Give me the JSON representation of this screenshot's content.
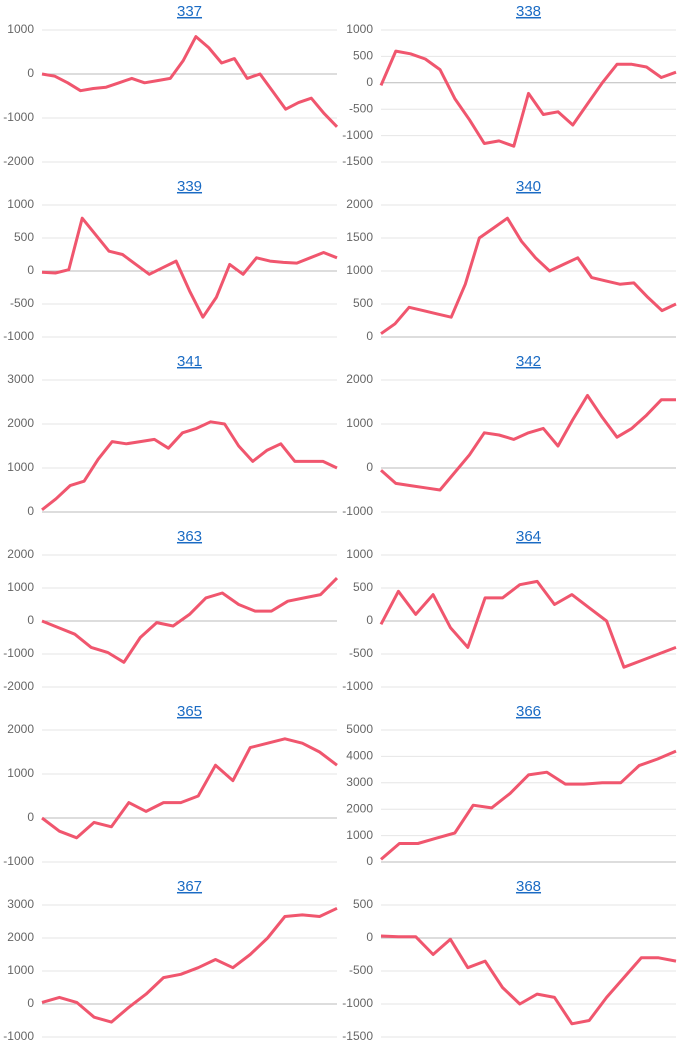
{
  "chart_data": [
    {
      "type": "line",
      "title": "337",
      "color": "#f0566e",
      "ylim": [
        -2000,
        1000
      ],
      "yticks": [
        -2000,
        -1000,
        0,
        1000
      ],
      "grid": true,
      "values": [
        0,
        -50,
        -200,
        -380,
        -330,
        -300,
        -200,
        -100,
        -200,
        -150,
        -100,
        300,
        850,
        600,
        250,
        350,
        -100,
        0,
        -400,
        -800,
        -650,
        -550,
        -900,
        -1200
      ]
    },
    {
      "type": "line",
      "title": "338",
      "color": "#f0566e",
      "ylim": [
        -1500,
        1000
      ],
      "yticks": [
        -1500,
        -1000,
        -500,
        0,
        500,
        1000
      ],
      "grid": true,
      "values": [
        -50,
        600,
        550,
        450,
        250,
        -300,
        -700,
        -1150,
        -1100,
        -1200,
        -200,
        -600,
        -550,
        -800,
        -400,
        0,
        350,
        350,
        300,
        100,
        200
      ]
    },
    {
      "type": "line",
      "title": "339",
      "color": "#f0566e",
      "ylim": [
        -1000,
        1000
      ],
      "yticks": [
        -1000,
        -500,
        0,
        500,
        1000
      ],
      "grid": true,
      "values": [
        -20,
        -30,
        20,
        800,
        550,
        300,
        250,
        100,
        -50,
        50,
        150,
        -300,
        -700,
        -400,
        100,
        -50,
        200,
        150,
        130,
        120,
        200,
        280,
        200
      ]
    },
    {
      "type": "line",
      "title": "340",
      "color": "#f0566e",
      "ylim": [
        0,
        2000
      ],
      "yticks": [
        0,
        500,
        1000,
        1500,
        2000
      ],
      "grid": true,
      "values": [
        50,
        200,
        450,
        400,
        350,
        300,
        800,
        1500,
        1650,
        1800,
        1450,
        1200,
        1000,
        1100,
        1200,
        900,
        850,
        800,
        820,
        600,
        400,
        500
      ]
    },
    {
      "type": "line",
      "title": "341",
      "color": "#f0566e",
      "ylim": [
        0,
        3000
      ],
      "yticks": [
        0,
        1000,
        2000,
        3000
      ],
      "grid": true,
      "values": [
        50,
        300,
        600,
        700,
        1200,
        1600,
        1550,
        1600,
        1650,
        1450,
        1800,
        1900,
        2050,
        2000,
        1500,
        1150,
        1400,
        1550,
        1150,
        1150,
        1150,
        1000
      ]
    },
    {
      "type": "line",
      "title": "342",
      "color": "#f0566e",
      "ylim": [
        -1000,
        2000
      ],
      "yticks": [
        -1000,
        0,
        1000,
        2000
      ],
      "grid": true,
      "values": [
        -50,
        -350,
        -400,
        -450,
        -500,
        -100,
        300,
        800,
        750,
        650,
        800,
        900,
        500,
        1100,
        1650,
        1150,
        700,
        900,
        1200,
        1550,
        1550
      ]
    },
    {
      "type": "line",
      "title": "363",
      "color": "#f0566e",
      "ylim": [
        -2000,
        2000
      ],
      "yticks": [
        -2000,
        -1000,
        0,
        1000,
        2000
      ],
      "grid": true,
      "values": [
        0,
        -200,
        -400,
        -800,
        -950,
        -1250,
        -500,
        -50,
        -150,
        200,
        700,
        850,
        500,
        300,
        300,
        600,
        700,
        800,
        1300
      ]
    },
    {
      "type": "line",
      "title": "364",
      "color": "#f0566e",
      "ylim": [
        -1000,
        1000
      ],
      "yticks": [
        -1000,
        -500,
        0,
        500,
        1000
      ],
      "grid": true,
      "values": [
        -50,
        450,
        100,
        400,
        -100,
        -400,
        350,
        350,
        550,
        600,
        250,
        400,
        200,
        0,
        -700,
        -600,
        -500,
        -400
      ]
    },
    {
      "type": "line",
      "title": "365",
      "color": "#f0566e",
      "ylim": [
        -1000,
        2000
      ],
      "yticks": [
        -1000,
        0,
        1000,
        2000
      ],
      "grid": true,
      "values": [
        0,
        -300,
        -450,
        -100,
        -200,
        350,
        150,
        350,
        350,
        500,
        1200,
        850,
        1600,
        1700,
        1800,
        1700,
        1500,
        1200
      ]
    },
    {
      "type": "line",
      "title": "366",
      "color": "#f0566e",
      "ylim": [
        0,
        5000
      ],
      "yticks": [
        0,
        1000,
        2000,
        3000,
        4000,
        5000
      ],
      "grid": true,
      "values": [
        100,
        700,
        700,
        900,
        1100,
        2150,
        2050,
        2600,
        3300,
        3400,
        2950,
        2950,
        3000,
        3000,
        3650,
        3900,
        4200
      ]
    },
    {
      "type": "line",
      "title": "367",
      "color": "#f0566e",
      "ylim": [
        -1000,
        3000
      ],
      "yticks": [
        -1000,
        0,
        1000,
        2000,
        3000
      ],
      "grid": true,
      "values": [
        50,
        200,
        50,
        -400,
        -550,
        -100,
        300,
        800,
        900,
        1100,
        1350,
        1100,
        1500,
        2000,
        2650,
        2700,
        2650,
        2900
      ]
    },
    {
      "type": "line",
      "title": "368",
      "color": "#f0566e",
      "ylim": [
        -1500,
        500
      ],
      "yticks": [
        -1500,
        -1000,
        -500,
        0,
        500
      ],
      "grid": true,
      "values": [
        30,
        20,
        20,
        -250,
        -20,
        -450,
        -350,
        -750,
        -1000,
        -850,
        -900,
        -1300,
        -1250,
        -900,
        -600,
        -300,
        -300,
        -350
      ]
    }
  ]
}
